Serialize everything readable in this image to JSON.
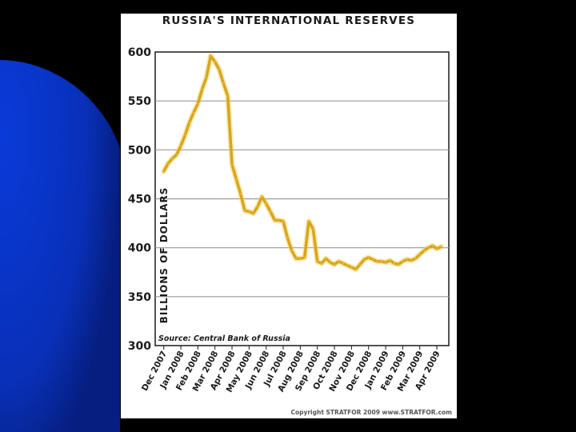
{
  "colors": {
    "slide_background": "#000000",
    "slide_accent": "#0a35c8",
    "line": "#d9a51c",
    "line_glow": "#f2cf55",
    "grid": "#9a9a9a",
    "frame": "#1a1a1a"
  },
  "chart_data": {
    "type": "line",
    "title": "RUSSIA'S INTERNATIONAL RESERVES",
    "ylabel": "BILLIONS OF DOLLARS",
    "xlabel": "",
    "ylim": [
      300,
      600
    ],
    "yticks": [
      300,
      350,
      400,
      450,
      500,
      550,
      600
    ],
    "yticks_text": [
      "300",
      "350",
      "400",
      "450",
      "500",
      "550",
      "600"
    ],
    "grid": true,
    "categories": [
      "Dec 2007",
      "Jan 2008",
      "Feb 2008",
      "Mar 2008",
      "Apr 2008",
      "May 2008",
      "Jun 2008",
      "Jul 2008",
      "Aug 2008",
      "Sep 2008",
      "Oct 2008",
      "Nov 2008",
      "Dec 2008",
      "Jan 2009",
      "Feb 2009",
      "Mar 2009",
      "Apr 2009"
    ],
    "x": [
      0,
      0.25,
      0.5,
      0.75,
      1,
      1.25,
      1.5,
      1.75,
      2,
      2.25,
      2.5,
      2.75,
      3,
      3.25,
      3.5,
      3.75,
      4,
      4.25,
      4.5,
      4.75,
      5,
      5.25,
      5.5,
      5.75,
      6,
      6.25,
      6.5,
      6.75,
      7,
      7.25,
      7.5,
      7.75,
      8,
      8.25,
      8.5,
      8.75,
      9,
      9.25,
      9.5,
      9.75,
      10,
      10.25,
      10.5,
      10.75,
      11,
      11.25,
      11.5,
      11.75,
      12,
      12.25,
      12.5,
      12.75,
      13,
      13.25,
      13.5,
      13.75,
      14,
      14.25,
      14.5,
      14.75,
      15,
      15.25,
      15.5,
      15.75,
      16,
      16.25
    ],
    "series": [
      {
        "values": [
          478,
          486,
          491,
          495,
          504,
          515,
          528,
          538,
          547,
          562,
          574,
          596,
          590,
          582,
          568,
          555,
          485,
          470,
          455,
          438,
          437,
          435,
          442,
          452,
          445,
          437,
          428,
          428,
          427,
          410,
          397,
          389,
          389,
          390,
          427,
          419,
          386,
          384,
          389,
          385,
          383,
          386,
          384,
          382,
          380,
          378,
          383,
          388,
          390,
          388,
          386,
          386,
          385,
          387,
          384,
          383,
          386,
          388,
          387,
          389,
          393,
          397,
          400,
          402,
          399,
          401
        ]
      }
    ],
    "source": "Source: Central Bank of Russia",
    "copyright": "Copyright STRATFOR 2009   www.STRATFOR.com",
    "legend": "none"
  }
}
